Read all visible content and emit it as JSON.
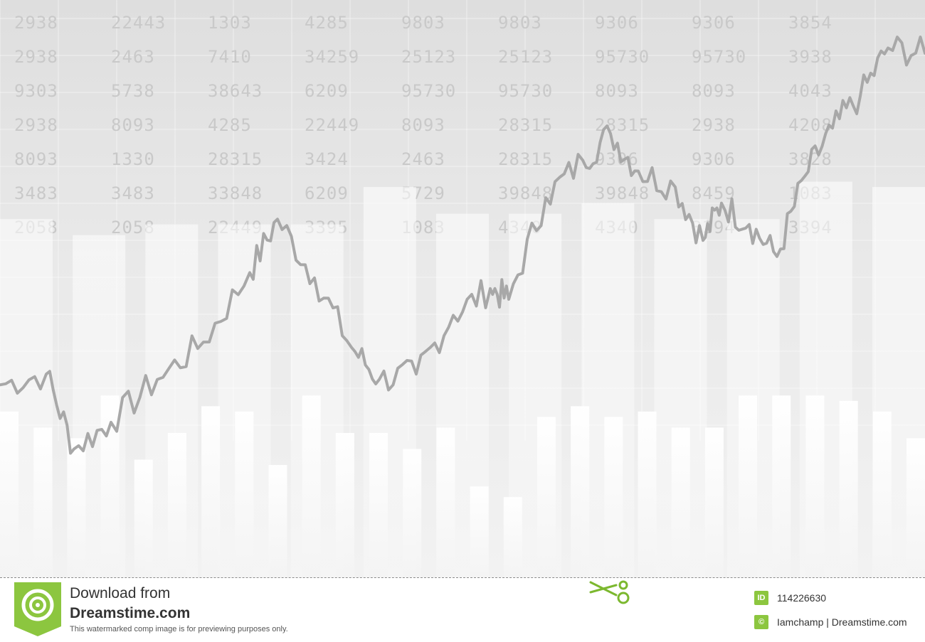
{
  "chart_data": {
    "type": "bar",
    "title": "",
    "xlabel": "",
    "ylabel": "",
    "grid": true,
    "ylim": [
      0,
      100
    ],
    "background_bars": [
      67,
      64,
      66,
      66,
      66,
      73,
      68,
      68,
      70,
      67,
      67,
      74,
      73
    ],
    "front_bars": [
      31,
      28,
      26,
      34,
      22,
      27,
      32,
      31,
      21,
      34,
      27,
      27,
      24,
      28,
      17,
      15,
      30,
      32,
      30,
      31,
      28,
      28,
      34,
      34,
      34,
      33,
      31,
      26
    ],
    "line_trend": [
      {
        "x": 0,
        "y": 36
      },
      {
        "x": 5,
        "y": 38
      },
      {
        "x": 8,
        "y": 24
      },
      {
        "x": 12,
        "y": 29
      },
      {
        "x": 17,
        "y": 37
      },
      {
        "x": 22,
        "y": 44
      },
      {
        "x": 27,
        "y": 57
      },
      {
        "x": 30,
        "y": 67
      },
      {
        "x": 34,
        "y": 56
      },
      {
        "x": 38,
        "y": 43
      },
      {
        "x": 41,
        "y": 37
      },
      {
        "x": 45,
        "y": 38
      },
      {
        "x": 49,
        "y": 49
      },
      {
        "x": 53,
        "y": 54
      },
      {
        "x": 55,
        "y": 52
      },
      {
        "x": 59,
        "y": 71
      },
      {
        "x": 63,
        "y": 78
      },
      {
        "x": 66,
        "y": 83
      },
      {
        "x": 69,
        "y": 76
      },
      {
        "x": 73,
        "y": 73
      },
      {
        "x": 76,
        "y": 63
      },
      {
        "x": 78,
        "y": 70
      },
      {
        "x": 81,
        "y": 66
      },
      {
        "x": 84,
        "y": 60
      },
      {
        "x": 87,
        "y": 75
      },
      {
        "x": 90,
        "y": 84
      },
      {
        "x": 93,
        "y": 90
      },
      {
        "x": 96,
        "y": 99
      },
      {
        "x": 100,
        "y": 98
      }
    ],
    "ticker_numbers": [
      [
        "2938",
        "22443",
        "1303",
        "4285",
        "9803",
        "9803",
        "9306",
        "9306",
        "3854"
      ],
      [
        "2938",
        "2463",
        "7410",
        "34259",
        "25123",
        "25123",
        "95730",
        "95730",
        "3938"
      ],
      [
        "9303",
        "5738",
        "38643",
        "6209",
        "95730",
        "95730",
        "8093",
        "8093",
        "4043"
      ],
      [
        "2938",
        "8093",
        "4285",
        "22449",
        "8093",
        "28315",
        "28315",
        "2938",
        "4208"
      ],
      [
        "8093",
        "1330",
        "28315",
        "3424",
        "2463",
        "28315",
        "9306",
        "9306",
        "3828"
      ],
      [
        "3483",
        "3483",
        "33848",
        "6209",
        "5729",
        "39848",
        "39848",
        "8459",
        "1083"
      ],
      [
        "2058",
        "2058",
        "22449",
        "3395",
        "1083",
        "4340",
        "4340",
        "3394",
        "3394"
      ]
    ]
  },
  "footer": {
    "download_from": "Download from",
    "site_name": "Dreamstime.com",
    "note": "This watermarked comp image is for previewing purposes only.",
    "id_label": "ID",
    "id_value": "114226630",
    "credit_icon": "©",
    "credit": "Iamchamp | Dreamstime.com"
  },
  "colors": {
    "background": "#e6e6e6",
    "bars": "#ffffff",
    "line": "#a8a8a8",
    "brand": "#8cc63f"
  },
  "icons": [
    "dreamstime-logo-icon",
    "scissors-icon",
    "id-badge-icon",
    "copyright-icon"
  ]
}
